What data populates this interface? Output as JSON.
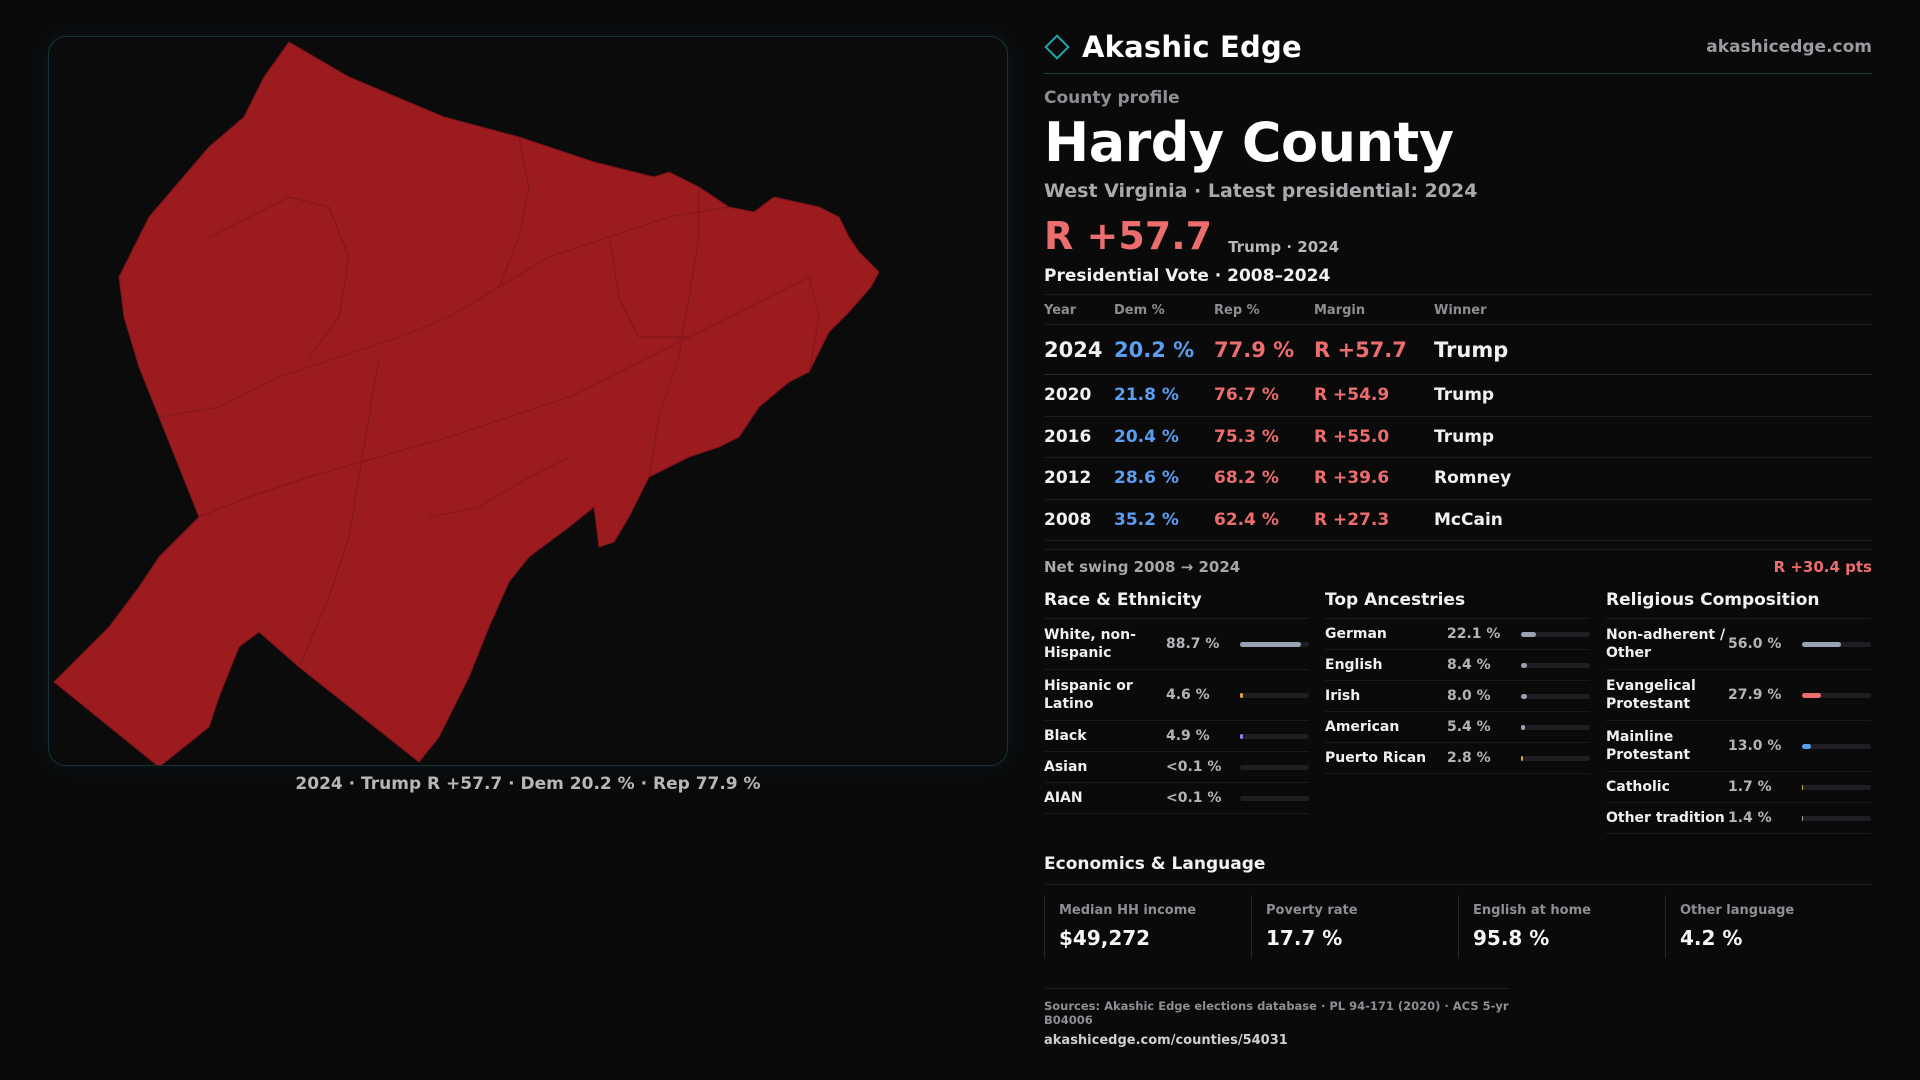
{
  "brand": {
    "name": "Akashic Edge",
    "url": "akashicedge.com",
    "logo_icon": "diamond-icon",
    "accent": "#1fa5a8"
  },
  "profile": {
    "kicker": "County profile",
    "title": "Hardy County",
    "subtitle": "West Virginia · Latest presidential: 2024",
    "headline_margin": "R +57.7",
    "headline_note": "Trump · 2024"
  },
  "map": {
    "caption": "2024 · Trump R +57.7 · Dem 20.2 % · Rep 77.9 %",
    "fill_color": "#9b1b1f"
  },
  "votes": {
    "title": "Presidential Vote · 2008–2024",
    "headers": [
      "Year",
      "Dem %",
      "Rep %",
      "Margin",
      "Winner"
    ],
    "rows": [
      {
        "year": "2024",
        "dem": "20.2 %",
        "rep": "77.9 %",
        "margin": "R +57.7",
        "winner": "Trump"
      },
      {
        "year": "2020",
        "dem": "21.8 %",
        "rep": "76.7 %",
        "margin": "R +54.9",
        "winner": "Trump"
      },
      {
        "year": "2016",
        "dem": "20.4 %",
        "rep": "75.3 %",
        "margin": "R +55.0",
        "winner": "Trump"
      },
      {
        "year": "2012",
        "dem": "28.6 %",
        "rep": "68.2 %",
        "margin": "R +39.6",
        "winner": "Romney"
      },
      {
        "year": "2008",
        "dem": "35.2 %",
        "rep": "62.4 %",
        "margin": "R +27.3",
        "winner": "McCain"
      }
    ],
    "swing_label": "Net swing 2008 → 2024",
    "swing_value": "R +30.4 pts"
  },
  "demographics": [
    {
      "title": "Race & Ethnicity",
      "rows": [
        {
          "label": "White, non-Hispanic",
          "value": "88.7 %",
          "fraction": 0.887,
          "color": "#9aa3b4"
        },
        {
          "label": "Hispanic or Latino",
          "value": "4.6 %",
          "fraction": 0.046,
          "color": "#e0a440"
        },
        {
          "label": "Black",
          "value": "4.9 %",
          "fraction": 0.049,
          "color": "#8a7ff0"
        },
        {
          "label": "Asian",
          "value": "<0.1 %",
          "fraction": 0.0,
          "color": "#5fb8d8"
        },
        {
          "label": "AIAN",
          "value": "<0.1 %",
          "fraction": 0.0,
          "color": "#5fb8d8"
        }
      ]
    },
    {
      "title": "Top Ancestries",
      "rows": [
        {
          "label": "German",
          "value": "22.1 %",
          "fraction": 0.221,
          "color": "#9aa3b4"
        },
        {
          "label": "English",
          "value": "8.4 %",
          "fraction": 0.084,
          "color": "#9aa3b4"
        },
        {
          "label": "Irish",
          "value": "8.0 %",
          "fraction": 0.08,
          "color": "#9aa3b4"
        },
        {
          "label": "American",
          "value": "5.4 %",
          "fraction": 0.054,
          "color": "#9aa3b4"
        },
        {
          "label": "Puerto Rican",
          "value": "2.8 %",
          "fraction": 0.028,
          "color": "#e0a440"
        }
      ]
    },
    {
      "title": "Religious Composition",
      "rows": [
        {
          "label": "Non-adherent / Other",
          "value": "56.0 %",
          "fraction": 0.56,
          "color": "#9aa3b4"
        },
        {
          "label": "Evangelical Protestant",
          "value": "27.9 %",
          "fraction": 0.279,
          "color": "#ec6d6d"
        },
        {
          "label": "Mainline Protestant",
          "value": "13.0 %",
          "fraction": 0.13,
          "color": "#5b9df0"
        },
        {
          "label": "Catholic",
          "value": "1.7 %",
          "fraction": 0.017,
          "color": "#c7b24a"
        },
        {
          "label": "Other tradition",
          "value": "1.4 %",
          "fraction": 0.014,
          "color": "#9aa3b4"
        }
      ]
    }
  ],
  "economics": {
    "title": "Economics & Language",
    "cards": [
      {
        "label": "Median HH income",
        "value": "$49,272"
      },
      {
        "label": "Poverty rate",
        "value": "17.7 %"
      },
      {
        "label": "English at home",
        "value": "95.8 %"
      },
      {
        "label": "Other language",
        "value": "4.2 %"
      }
    ]
  },
  "sources": {
    "text": "Sources: Akashic Edge elections database · PL 94-171 (2020) · ACS 5-yr B04006",
    "url": "akashicedge.com/counties/54031"
  }
}
